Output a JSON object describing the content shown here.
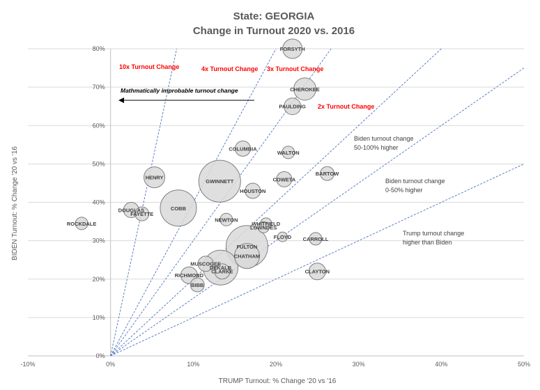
{
  "chart_data": {
    "type": "scatter",
    "title": "State: GEORGIA",
    "subtitle": "Change in Turnout 2020 vs. 2016",
    "xlabel": "TRUMP Turnout: % Change '20 vs '16",
    "ylabel": "BIDEN Turnout: % Change '20 vs '16",
    "xlim": [
      -10,
      50
    ],
    "ylim": [
      0,
      80
    ],
    "x_ticks": [
      -10,
      0,
      10,
      20,
      30,
      40,
      50
    ],
    "x_tick_labels": [
      "-10%",
      "0%",
      "10%",
      "20%",
      "30%",
      "40%",
      "50%"
    ],
    "y_ticks": [
      0,
      10,
      20,
      30,
      40,
      50,
      60,
      70,
      80
    ],
    "y_tick_labels": [
      "0%",
      "10%",
      "20%",
      "30%",
      "40%",
      "50%",
      "60%",
      "70%",
      "80%"
    ],
    "grid": "horizontal",
    "reference_lines": [
      {
        "name": "10x",
        "slope": 10
      },
      {
        "name": "4x",
        "slope": 4
      },
      {
        "name": "3x",
        "slope": 3
      },
      {
        "name": "2x",
        "slope": 2
      },
      {
        "name": "1.5x",
        "slope": 1.5
      },
      {
        "name": "1x",
        "slope": 1
      }
    ],
    "points": [
      {
        "name": "FORSYTH",
        "x": 22,
        "y": 80,
        "size": 14
      },
      {
        "name": "CHEROKEE",
        "x": 23.5,
        "y": 69.5,
        "size": 16
      },
      {
        "name": "PAULDING",
        "x": 22,
        "y": 65,
        "size": 12
      },
      {
        "name": "COLUMBIA",
        "x": 16,
        "y": 54,
        "size": 11
      },
      {
        "name": "WALTON",
        "x": 21.5,
        "y": 53,
        "size": 9
      },
      {
        "name": "BARTOW",
        "x": 26.2,
        "y": 47.5,
        "size": 10
      },
      {
        "name": "HENRY",
        "x": 5.3,
        "y": 46.5,
        "size": 15
      },
      {
        "name": "GWINNETT",
        "x": 13.2,
        "y": 45.5,
        "size": 30
      },
      {
        "name": "COWETA",
        "x": 21,
        "y": 46,
        "size": 11
      },
      {
        "name": "HOUSTON",
        "x": 17.2,
        "y": 43,
        "size": 11
      },
      {
        "name": "COBB",
        "x": 8.2,
        "y": 38.5,
        "size": 26
      },
      {
        "name": "DOUGLAS",
        "x": 2.5,
        "y": 38,
        "size": 11
      },
      {
        "name": "FAYETTE",
        "x": 3.8,
        "y": 37,
        "size": 10
      },
      {
        "name": "NEWTON",
        "x": 14,
        "y": 35.5,
        "size": 9
      },
      {
        "name": "ROCKDALE",
        "x": -3.5,
        "y": 34.5,
        "size": 9
      },
      {
        "name": "WHITFIELD",
        "x": 18.8,
        "y": 34.5,
        "size": 8
      },
      {
        "name": "LOWNDES",
        "x": 18.5,
        "y": 33.5,
        "size": 8
      },
      {
        "name": "FLOYD",
        "x": 20.8,
        "y": 31,
        "size": 7
      },
      {
        "name": "CARROLL",
        "x": 24.8,
        "y": 30.5,
        "size": 9
      },
      {
        "name": "FULTON",
        "x": 16.5,
        "y": 28.5,
        "size": 30
      },
      {
        "name": "CHATHAM",
        "x": 16.5,
        "y": 26,
        "size": 18
      },
      {
        "name": "MUSCOGEE",
        "x": 11.5,
        "y": 24,
        "size": 11
      },
      {
        "name": "DEKALB",
        "x": 13.3,
        "y": 23,
        "size": 25
      },
      {
        "name": "CLARKE",
        "x": 13.5,
        "y": 22,
        "size": 11
      },
      {
        "name": "CLAYTON",
        "x": 25,
        "y": 22,
        "size": 12
      },
      {
        "name": "RICHMOND",
        "x": 9.5,
        "y": 21,
        "size": 12
      },
      {
        "name": "BIBB",
        "x": 10.5,
        "y": 18.5,
        "size": 10
      }
    ],
    "annotations": {
      "ten_x": "10x Turnout Change",
      "four_x": "4x Turnout Change",
      "three_x": "3x Turnout Change",
      "two_x": "2x Turnout Change",
      "improbable": "Mathmatically improbable turnout change",
      "biden_50_100_line1": "Biden turnout change",
      "biden_50_100_line2": "50-100% higher",
      "biden_0_50_line1": "Biden turnout change",
      "biden_0_50_line2": "0-50% higher",
      "trump_higher_line1": "Trump turnout change",
      "trump_higher_line2": "higher than Biden"
    },
    "colors": {
      "bubble_fill": "#d9d9d9",
      "bubble_stroke": "#7f7f7f",
      "reference_line": "#5b7fc4",
      "gridline": "#d9d9d9",
      "red_label": "#ff0000"
    }
  }
}
